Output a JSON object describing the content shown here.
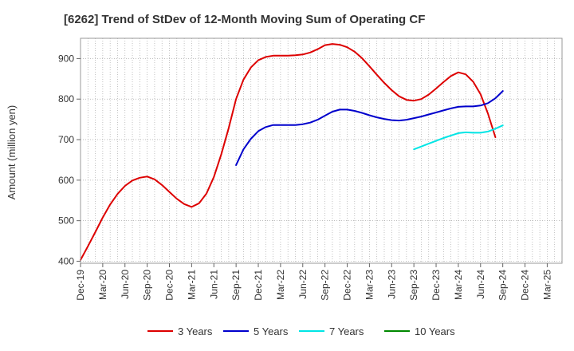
{
  "chart_data": {
    "type": "line",
    "title": "[6262]  Trend of StDev of 12-Month Moving Sum of Operating CF",
    "xlabel": "",
    "ylabel": "Amount (million yen)",
    "ylim": [
      395,
      950
    ],
    "yticks": [
      400,
      500,
      600,
      700,
      800,
      900
    ],
    "x_tick_labels": [
      "Dec-19",
      "Mar-20",
      "Jun-20",
      "Sep-20",
      "Dec-20",
      "Mar-21",
      "Jun-21",
      "Sep-21",
      "Dec-21",
      "Mar-22",
      "Jun-22",
      "Sep-22",
      "Dec-22",
      "Mar-23",
      "Jun-23",
      "Sep-23",
      "Dec-23",
      "Mar-24",
      "Jun-24",
      "Sep-24",
      "Dec-24",
      "Mar-25"
    ],
    "grid": true,
    "legend_position": "bottom",
    "series": [
      {
        "name": "3 Years",
        "color": "#dd0000",
        "start_index": 0,
        "values": [
          403,
          437,
          472,
          508,
          540,
          566,
          586,
          599,
          606,
          609,
          602,
          588,
          571,
          554,
          541,
          534,
          543,
          567,
          608,
          664,
          728,
          800,
          848,
          878,
          896,
          904,
          907,
          907,
          907,
          908,
          910,
          915,
          923,
          933,
          936,
          934,
          928,
          917,
          901,
          881,
          860,
          840,
          822,
          807,
          798,
          796,
          800,
          811,
          826,
          842,
          857,
          866,
          861,
          843,
          812,
          764,
          706
        ]
      },
      {
        "name": "5 Years",
        "color": "#0000cc",
        "start_index": 21,
        "values": [
          637,
          676,
          702,
          721,
          731,
          736,
          736,
          736,
          736,
          738,
          742,
          749,
          759,
          769,
          774,
          774,
          771,
          766,
          760,
          755,
          751,
          748,
          747,
          749,
          753,
          757,
          762,
          767,
          772,
          777,
          781,
          782,
          782,
          784,
          790,
          802,
          820
        ]
      },
      {
        "name": "7 Years",
        "color": "#00e5e5",
        "start_index": 45,
        "values": [
          676,
          683,
          690,
          697,
          704,
          710,
          716,
          718,
          717,
          717,
          720,
          727,
          735
        ]
      },
      {
        "name": "10 Years",
        "color": "#008800",
        "start_index": 0,
        "values": []
      }
    ]
  }
}
